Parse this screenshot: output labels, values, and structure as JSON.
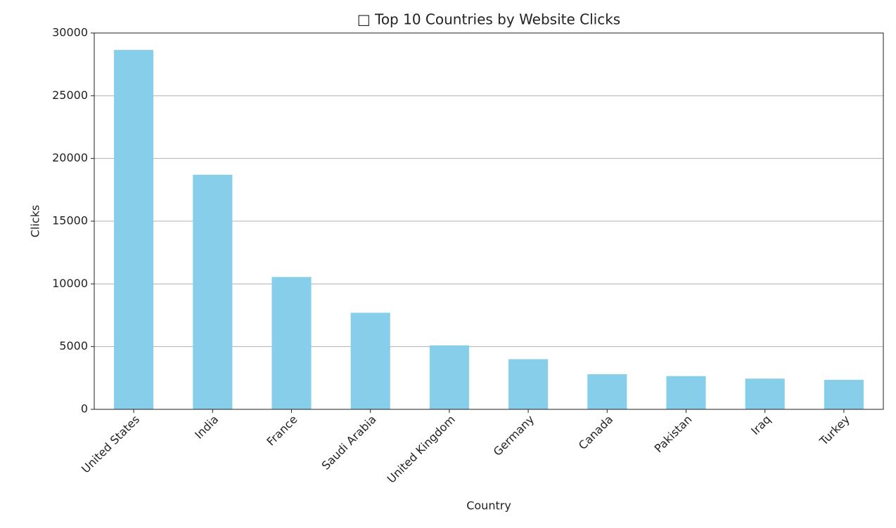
{
  "chart_data": {
    "type": "bar",
    "title": "□ Top 10 Countries by Website Clicks",
    "x_label": "Country",
    "y_label": "Clicks",
    "categories": [
      "United States",
      "India",
      "France",
      "Saudi Arabia",
      "United Kingdom",
      "Germany",
      "Canada",
      "Pakistan",
      "Iraq",
      "Turkey"
    ],
    "values": [
      28650,
      18700,
      10550,
      7700,
      5100,
      4000,
      2800,
      2650,
      2450,
      2350
    ],
    "color": "#87ceeb",
    "ylim": [
      0,
      30000
    ],
    "yticks": [
      0,
      5000,
      10000,
      15000,
      20000,
      25000,
      30000
    ],
    "grid": true
  }
}
